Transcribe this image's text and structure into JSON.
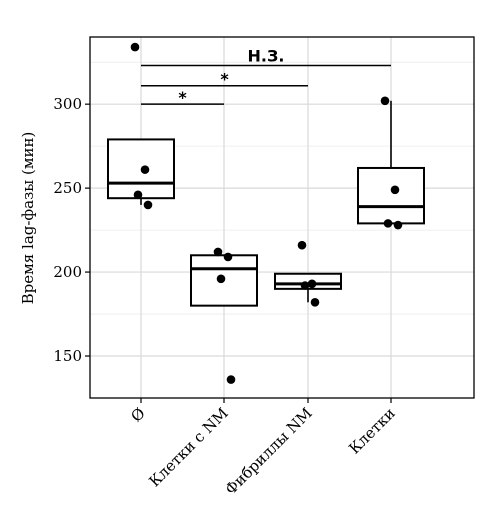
{
  "chart_data": {
    "type": "box",
    "title": "",
    "xlabel": "",
    "ylabel": "Время lag-фазы (мин)",
    "ylim": [
      125,
      340
    ],
    "yticks": [
      150,
      200,
      250,
      300
    ],
    "grid": true,
    "categories": [
      "Ø",
      "Клетки с NM",
      "Фибриллы NM",
      "Клетки"
    ],
    "boxes": [
      {
        "category": "Ø",
        "q1": 244,
        "median": 253,
        "q3": 279,
        "whisker_low": 240,
        "whisker_high": 279
      },
      {
        "category": "Клетки с NM",
        "q1": 180,
        "median": 202,
        "q3": 210,
        "whisker_low": 180,
        "whisker_high": 210
      },
      {
        "category": "Фибриллы NM",
        "q1": 190,
        "median": 193,
        "q3": 199,
        "whisker_low": 182,
        "whisker_high": 199
      },
      {
        "category": "Клетки",
        "q1": 229,
        "median": 239,
        "q3": 262,
        "whisker_low": 229,
        "whisker_high": 302
      }
    ],
    "points": [
      {
        "category": "Ø",
        "values": [
          334,
          261,
          246,
          240
        ]
      },
      {
        "category": "Клетки с NM",
        "values": [
          212,
          209,
          196,
          136
        ]
      },
      {
        "category": "Фибриллы NM",
        "values": [
          216,
          193,
          192,
          182
        ]
      },
      {
        "category": "Клетки",
        "values": [
          302,
          249,
          229,
          228
        ]
      }
    ],
    "significance": [
      {
        "from": "Ø",
        "to": "Клетки",
        "label": "Н.З.",
        "y": 323
      },
      {
        "from": "Ø",
        "to": "Фибриллы NM",
        "label": "*",
        "y": 311
      },
      {
        "from": "Ø",
        "to": "Клетки с NM",
        "label": "*",
        "y": 300
      }
    ]
  }
}
